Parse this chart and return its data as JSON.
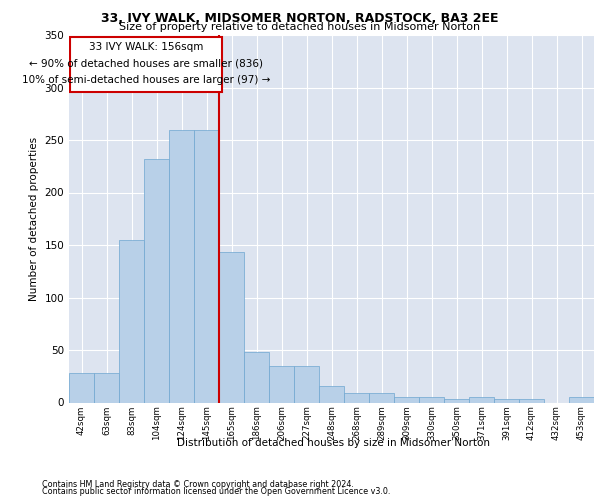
{
  "title": "33, IVY WALK, MIDSOMER NORTON, RADSTOCK, BA3 2EE",
  "subtitle": "Size of property relative to detached houses in Midsomer Norton",
  "xlabel": "Distribution of detached houses by size in Midsomer Norton",
  "ylabel": "Number of detached properties",
  "footer1": "Contains HM Land Registry data © Crown copyright and database right 2024.",
  "footer2": "Contains public sector information licensed under the Open Government Licence v3.0.",
  "annotation_line1": "33 IVY WALK: 156sqm",
  "annotation_line2": "← 90% of detached houses are smaller (836)",
  "annotation_line3": "10% of semi-detached houses are larger (97) →",
  "bar_categories": [
    "42sqm",
    "63sqm",
    "83sqm",
    "104sqm",
    "124sqm",
    "145sqm",
    "165sqm",
    "186sqm",
    "206sqm",
    "227sqm",
    "248sqm",
    "268sqm",
    "289sqm",
    "309sqm",
    "330sqm",
    "350sqm",
    "371sqm",
    "391sqm",
    "412sqm",
    "432sqm",
    "453sqm"
  ],
  "bar_heights": [
    28,
    28,
    155,
    232,
    260,
    260,
    143,
    48,
    35,
    35,
    16,
    9,
    9,
    5,
    5,
    3,
    5,
    3,
    3,
    0,
    5
  ],
  "bar_color": "#b8d0e8",
  "bar_edge_color": "#6ea6d0",
  "vline_color": "#cc0000",
  "annotation_box_color": "#cc0000",
  "background_color": "#dde4f0",
  "ylim": [
    0,
    350
  ],
  "yticks": [
    0,
    50,
    100,
    150,
    200,
    250,
    300,
    350
  ]
}
